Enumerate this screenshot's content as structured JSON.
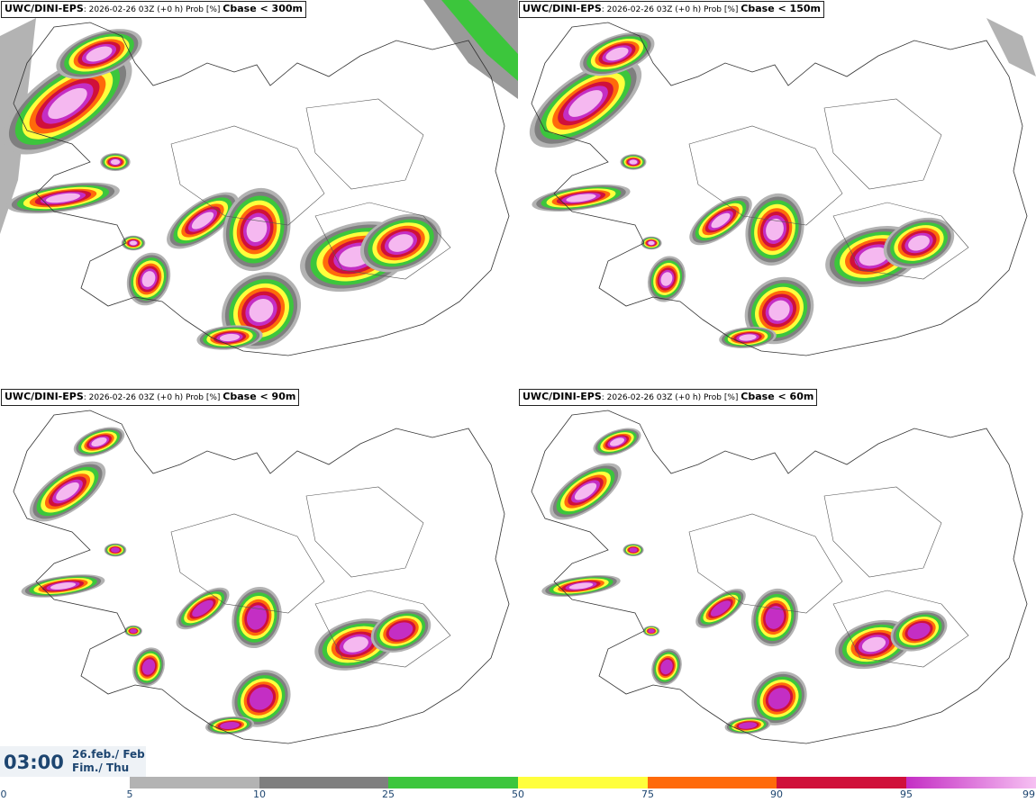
{
  "panels": [
    {
      "model": "UWC/DINI-EPS",
      "run": ": 2026-02-26 03Z (+0 h) Prob [%] ",
      "threshold": "Cbase < 300m",
      "scale": 1.15
    },
    {
      "model": "UWC/DINI-EPS",
      "run": ": 2026-02-26 03Z (+0 h) Prob [%] ",
      "threshold": "Cbase < 150m",
      "scale": 1.0
    },
    {
      "model": "UWC/DINI-EPS",
      "run": ": 2026-02-26 03Z (+0 h) Prob [%] ",
      "threshold": "Cbase < 90m",
      "scale": 0.85
    },
    {
      "model": "UWC/DINI-EPS",
      "run": ": 2026-02-26 03Z (+0 h) Prob [%] ",
      "threshold": "Cbase < 60m",
      "scale": 0.8
    }
  ],
  "time": "03:00",
  "date_line1": "26.feb./ Feb",
  "date_line2": "Fim./ Thu",
  "legend": {
    "ticks": [
      "0",
      "5",
      "10",
      "25",
      "50",
      "75",
      "90",
      "95",
      "99"
    ],
    "bins": [
      {
        "from": "5",
        "to": "10",
        "color": "#b3b3b3"
      },
      {
        "from": "10",
        "to": "25",
        "color": "#7f7f7f"
      },
      {
        "from": "25",
        "to": "50",
        "color": "#3cc63c"
      },
      {
        "from": "50",
        "to": "75",
        "color": "#ffff3c"
      },
      {
        "from": "75",
        "to": "90",
        "color": "#ff6a0a"
      },
      {
        "from": "90",
        "to": "95",
        "color": "#d0103a"
      },
      {
        "from": "95",
        "to": "99",
        "color": "#c42ec4"
      }
    ]
  }
}
